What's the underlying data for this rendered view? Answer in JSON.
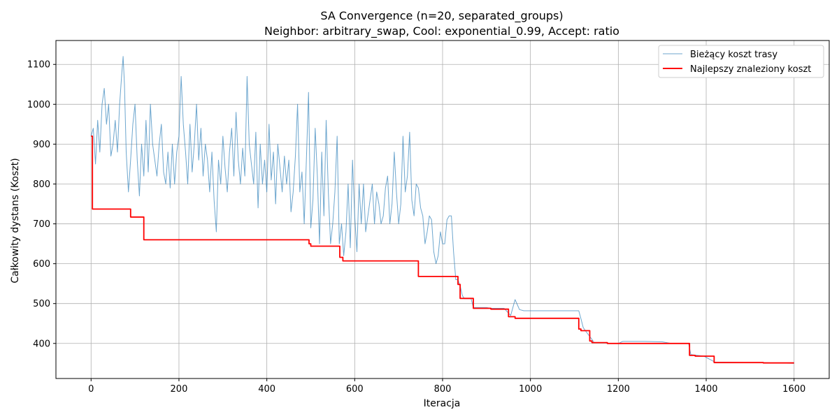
{
  "chart_data": {
    "type": "line",
    "title": "SA Convergence (n=20, separated_groups)",
    "subtitle": "Neighbor: arbitrary_swap, Cool: exponential_0.99, Accept: ratio",
    "xlabel": "Iteracja",
    "ylabel": "Całkowity dystans (Koszt)",
    "xlim": [
      -80,
      1680
    ],
    "ylim": [
      312,
      1160
    ],
    "x_ticks": [
      0,
      200,
      400,
      600,
      800,
      1000,
      1200,
      1400,
      1600
    ],
    "y_ticks": [
      400,
      500,
      600,
      700,
      800,
      900,
      1000,
      1100
    ],
    "grid": true,
    "legend_position": "top-right",
    "series": [
      {
        "name": "Bieżący koszt trasy",
        "color": "#1f77b4",
        "style": "thin-line",
        "points": [
          [
            0,
            920
          ],
          [
            5,
            940
          ],
          [
            10,
            850
          ],
          [
            15,
            960
          ],
          [
            20,
            880
          ],
          [
            25,
            1000
          ],
          [
            30,
            1040
          ],
          [
            35,
            950
          ],
          [
            40,
            1000
          ],
          [
            45,
            870
          ],
          [
            50,
            900
          ],
          [
            55,
            960
          ],
          [
            60,
            880
          ],
          [
            65,
            1000
          ],
          [
            70,
            1080
          ],
          [
            73,
            1120
          ],
          [
            76,
            1050
          ],
          [
            80,
            880
          ],
          [
            85,
            780
          ],
          [
            90,
            860
          ],
          [
            95,
            950
          ],
          [
            100,
            1000
          ],
          [
            105,
            860
          ],
          [
            110,
            770
          ],
          [
            115,
            900
          ],
          [
            120,
            820
          ],
          [
            125,
            960
          ],
          [
            130,
            830
          ],
          [
            135,
            1000
          ],
          [
            140,
            900
          ],
          [
            145,
            860
          ],
          [
            150,
            820
          ],
          [
            155,
            900
          ],
          [
            160,
            950
          ],
          [
            165,
            830
          ],
          [
            170,
            800
          ],
          [
            175,
            880
          ],
          [
            180,
            790
          ],
          [
            185,
            900
          ],
          [
            190,
            800
          ],
          [
            195,
            880
          ],
          [
            200,
            920
          ],
          [
            205,
            1070
          ],
          [
            210,
            950
          ],
          [
            215,
            880
          ],
          [
            220,
            800
          ],
          [
            225,
            950
          ],
          [
            230,
            830
          ],
          [
            235,
            900
          ],
          [
            240,
            1000
          ],
          [
            245,
            860
          ],
          [
            250,
            940
          ],
          [
            255,
            820
          ],
          [
            260,
            900
          ],
          [
            265,
            860
          ],
          [
            270,
            780
          ],
          [
            275,
            880
          ],
          [
            280,
            760
          ],
          [
            285,
            680
          ],
          [
            290,
            860
          ],
          [
            295,
            800
          ],
          [
            300,
            920
          ],
          [
            305,
            840
          ],
          [
            310,
            780
          ],
          [
            315,
            880
          ],
          [
            320,
            940
          ],
          [
            325,
            820
          ],
          [
            330,
            980
          ],
          [
            335,
            860
          ],
          [
            340,
            800
          ],
          [
            345,
            890
          ],
          [
            350,
            820
          ],
          [
            355,
            1070
          ],
          [
            360,
            900
          ],
          [
            365,
            850
          ],
          [
            370,
            800
          ],
          [
            375,
            930
          ],
          [
            380,
            740
          ],
          [
            385,
            900
          ],
          [
            390,
            800
          ],
          [
            395,
            860
          ],
          [
            400,
            780
          ],
          [
            405,
            950
          ],
          [
            410,
            810
          ],
          [
            415,
            880
          ],
          [
            420,
            750
          ],
          [
            425,
            900
          ],
          [
            430,
            840
          ],
          [
            435,
            780
          ],
          [
            440,
            870
          ],
          [
            445,
            800
          ],
          [
            450,
            860
          ],
          [
            455,
            730
          ],
          [
            460,
            780
          ],
          [
            465,
            870
          ],
          [
            470,
            1000
          ],
          [
            475,
            780
          ],
          [
            480,
            830
          ],
          [
            485,
            700
          ],
          [
            490,
            860
          ],
          [
            495,
            1030
          ],
          [
            500,
            690
          ],
          [
            505,
            760
          ],
          [
            510,
            940
          ],
          [
            515,
            820
          ],
          [
            520,
            650
          ],
          [
            525,
            880
          ],
          [
            530,
            720
          ],
          [
            535,
            960
          ],
          [
            540,
            780
          ],
          [
            545,
            650
          ],
          [
            550,
            700
          ],
          [
            555,
            780
          ],
          [
            560,
            920
          ],
          [
            565,
            650
          ],
          [
            570,
            700
          ],
          [
            575,
            620
          ],
          [
            580,
            680
          ],
          [
            585,
            800
          ],
          [
            590,
            640
          ],
          [
            595,
            860
          ],
          [
            600,
            720
          ],
          [
            605,
            630
          ],
          [
            610,
            800
          ],
          [
            615,
            700
          ],
          [
            620,
            800
          ],
          [
            625,
            680
          ],
          [
            630,
            720
          ],
          [
            635,
            760
          ],
          [
            640,
            800
          ],
          [
            645,
            700
          ],
          [
            650,
            780
          ],
          [
            655,
            750
          ],
          [
            660,
            700
          ],
          [
            665,
            720
          ],
          [
            670,
            790
          ],
          [
            675,
            820
          ],
          [
            680,
            700
          ],
          [
            685,
            750
          ],
          [
            690,
            880
          ],
          [
            695,
            780
          ],
          [
            700,
            700
          ],
          [
            705,
            750
          ],
          [
            710,
            920
          ],
          [
            715,
            780
          ],
          [
            720,
            820
          ],
          [
            725,
            930
          ],
          [
            730,
            760
          ],
          [
            735,
            720
          ],
          [
            740,
            800
          ],
          [
            745,
            790
          ],
          [
            750,
            740
          ],
          [
            755,
            720
          ],
          [
            760,
            650
          ],
          [
            765,
            680
          ],
          [
            770,
            720
          ],
          [
            775,
            710
          ],
          [
            780,
            630
          ],
          [
            785,
            600
          ],
          [
            790,
            620
          ],
          [
            795,
            680
          ],
          [
            800,
            650
          ],
          [
            805,
            650
          ],
          [
            810,
            710
          ],
          [
            815,
            720
          ],
          [
            820,
            720
          ],
          [
            825,
            630
          ],
          [
            830,
            560
          ],
          [
            835,
            560
          ],
          [
            840,
            545
          ],
          [
            845,
            520
          ],
          [
            850,
            512
          ],
          [
            855,
            512
          ],
          [
            860,
            512
          ],
          [
            865,
            512
          ],
          [
            870,
            490
          ],
          [
            900,
            490
          ],
          [
            910,
            488
          ],
          [
            940,
            488
          ],
          [
            955,
            470
          ],
          [
            965,
            510
          ],
          [
            975,
            485
          ],
          [
            985,
            482
          ],
          [
            1000,
            482
          ],
          [
            1110,
            482
          ],
          [
            1115,
            462
          ],
          [
            1120,
            440
          ],
          [
            1125,
            432
          ],
          [
            1140,
            410
          ],
          [
            1145,
            402
          ],
          [
            1170,
            402
          ],
          [
            1175,
            400
          ],
          [
            1200,
            400
          ],
          [
            1210,
            405
          ],
          [
            1260,
            405
          ],
          [
            1300,
            404
          ],
          [
            1320,
            400
          ],
          [
            1360,
            400
          ],
          [
            1365,
            372
          ],
          [
            1380,
            370
          ],
          [
            1395,
            368
          ],
          [
            1420,
            353
          ],
          [
            1530,
            352
          ],
          [
            1600,
            350
          ]
        ]
      },
      {
        "name": "Najlepszy znaleziony koszt",
        "color": "#ff0000",
        "style": "step",
        "points": [
          [
            0,
            920
          ],
          [
            3,
            920
          ],
          [
            3,
            737
          ],
          [
            90,
            737
          ],
          [
            90,
            717
          ],
          [
            120,
            717
          ],
          [
            120,
            660
          ],
          [
            496,
            660
          ],
          [
            496,
            650
          ],
          [
            500,
            650
          ],
          [
            500,
            644
          ],
          [
            566,
            644
          ],
          [
            566,
            616
          ],
          [
            573,
            616
          ],
          [
            573,
            607
          ],
          [
            745,
            607
          ],
          [
            745,
            568
          ],
          [
            835,
            568
          ],
          [
            835,
            548
          ],
          [
            840,
            548
          ],
          [
            840,
            513
          ],
          [
            870,
            513
          ],
          [
            870,
            488
          ],
          [
            910,
            488
          ],
          [
            910,
            486
          ],
          [
            950,
            486
          ],
          [
            950,
            467
          ],
          [
            965,
            467
          ],
          [
            965,
            463
          ],
          [
            1110,
            463
          ],
          [
            1110,
            436
          ],
          [
            1115,
            436
          ],
          [
            1115,
            432
          ],
          [
            1135,
            432
          ],
          [
            1135,
            406
          ],
          [
            1140,
            406
          ],
          [
            1140,
            402
          ],
          [
            1175,
            402
          ],
          [
            1175,
            400
          ],
          [
            1362,
            400
          ],
          [
            1362,
            370
          ],
          [
            1375,
            370
          ],
          [
            1375,
            368
          ],
          [
            1418,
            368
          ],
          [
            1418,
            352
          ],
          [
            1530,
            352
          ],
          [
            1530,
            351
          ],
          [
            1600,
            351
          ]
        ]
      }
    ]
  }
}
